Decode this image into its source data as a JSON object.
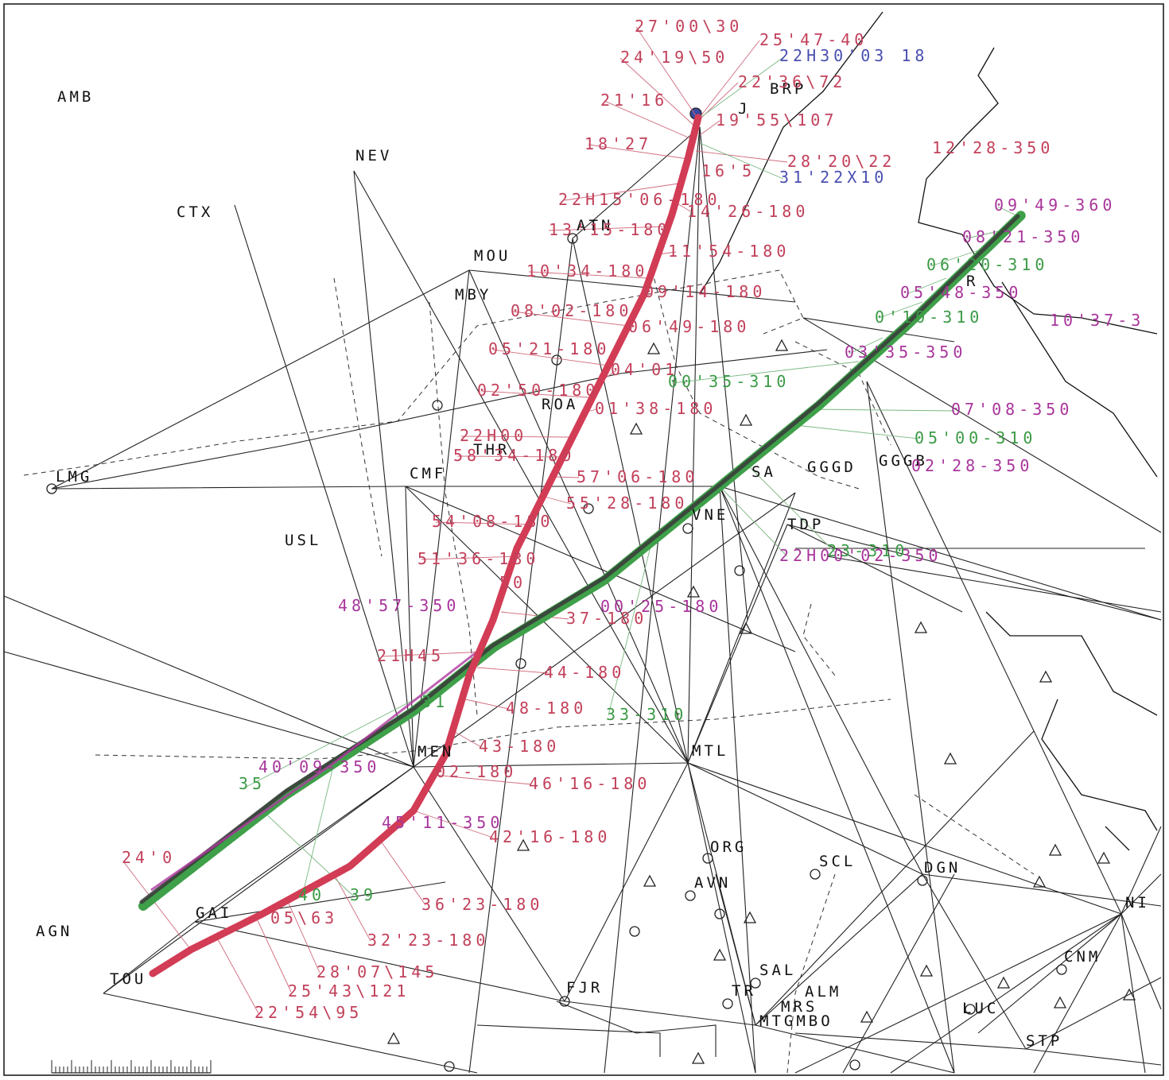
{
  "colors": {
    "track_red": "#d23c55",
    "track_green": "#3fa04a",
    "track_dark": "#3a3a3a",
    "track_magenta": "#b03aa0",
    "label_red": "#c2405a",
    "label_magenta": "#a8359b",
    "label_green": "#3b9a45",
    "label_blue": "#4a4fb0",
    "station_text": "#111111"
  },
  "stations": [
    {
      "id": "AMB",
      "label": "AMB"
    },
    {
      "id": "NEV",
      "label": "NEV"
    },
    {
      "id": "CTX",
      "label": "CTX"
    },
    {
      "id": "MOU",
      "label": "MOU"
    },
    {
      "id": "MBY",
      "label": "MBY"
    },
    {
      "id": "ATN",
      "label": "ATN"
    },
    {
      "id": "BRP",
      "label": "BRP"
    },
    {
      "id": "J",
      "label": "J"
    },
    {
      "id": "LMG",
      "label": "LMG"
    },
    {
      "id": "CMF",
      "label": "CMF"
    },
    {
      "id": "THR",
      "label": "THR"
    },
    {
      "id": "ROA",
      "label": "ROA"
    },
    {
      "id": "USL",
      "label": "USL"
    },
    {
      "id": "MEN",
      "label": "MEN"
    },
    {
      "id": "MTL",
      "label": "MTL"
    },
    {
      "id": "ORG",
      "label": "ORG"
    },
    {
      "id": "AVN",
      "label": "AVN"
    },
    {
      "id": "SCL",
      "label": "SCL"
    },
    {
      "id": "DGN",
      "label": "DGN"
    },
    {
      "id": "AGN",
      "label": "AGN"
    },
    {
      "id": "GAI",
      "label": "GAI"
    },
    {
      "id": "TOU",
      "label": "TOU"
    },
    {
      "id": "FJR",
      "label": "FJR"
    },
    {
      "id": "SAL",
      "label": "SAL"
    },
    {
      "id": "TR",
      "label": "TR"
    },
    {
      "id": "ALM",
      "label": "ALM"
    },
    {
      "id": "MRS",
      "label": "MRS"
    },
    {
      "id": "MTG",
      "label": "MTGMBO"
    },
    {
      "id": "LUC",
      "label": "LUC"
    },
    {
      "id": "STP",
      "label": "STP"
    },
    {
      "id": "CNM",
      "label": "CNM"
    },
    {
      "id": "NI",
      "label": "NI"
    },
    {
      "id": "SA",
      "label": "SA"
    },
    {
      "id": "VNE",
      "label": "VNE"
    },
    {
      "id": "TDP",
      "label": "TDP"
    },
    {
      "id": "GGGD",
      "label": "GGGD"
    },
    {
      "id": "GGGB",
      "label": "GGGB"
    },
    {
      "id": "R",
      "label": "R"
    }
  ],
  "track_labels": {
    "red": [
      "27'00\\30",
      "25'47-40",
      "24'19\\50",
      "22'36\\72",
      "21'16",
      "19'55\\107",
      "18'27",
      "28'20\\22",
      "16'5",
      "22H15'06-180",
      "14'26-180",
      "13'15-180",
      "11'54-180",
      "10'34-180",
      "09'14-180",
      "08'02-180",
      "06'49-180",
      "05'21-180",
      "04'01",
      "02'50-180",
      "01'38-180",
      "22H00",
      "58'34-180",
      "57'06-180",
      "55'28-180",
      "54'08-180",
      "51'36-180",
      "50",
      "37-180",
      "21H45",
      "44-180",
      "48-180",
      "43-180",
      "02-180",
      "46'16-180",
      "42'16-180",
      "36'23-180",
      "32'23-180",
      "28'07\\145",
      "25'43\\121",
      "22'54\\95",
      "24'0",
      "05\\63",
      "12'28-350"
    ],
    "magenta": [
      "09'49-360",
      "08'21-350",
      "05'48-350",
      "10'37-3",
      "03'35-350",
      "07'08-350",
      "02'28-350",
      "22H00'02-350",
      "48'57-350",
      "40'09-350",
      "45'11-350",
      "00'25-180"
    ],
    "green": [
      "06'20-310",
      "0'10-310",
      "00'35-310",
      "05'00-310",
      "23-310",
      "33-310",
      "31",
      "40",
      "35",
      "39"
    ],
    "blue": [
      "22H30'03 18",
      "31'22X10"
    ]
  },
  "scale_bar": {
    "label": ""
  }
}
